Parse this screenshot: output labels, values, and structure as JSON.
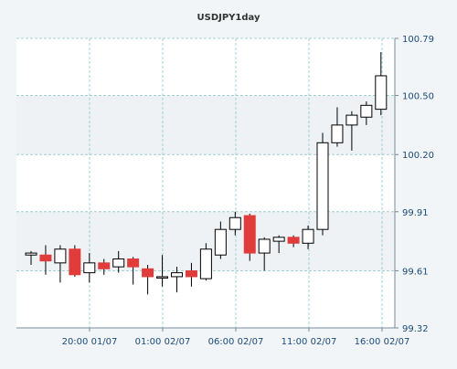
{
  "chart_data": {
    "type": "candlestick",
    "title": "USDJPY1day",
    "xlabel": "",
    "ylabel": "",
    "ylim": [
      99.32,
      100.79
    ],
    "y_ticks": [
      "100.79",
      "100.50",
      "100.20",
      "99.91",
      "99.61",
      "99.32"
    ],
    "x_ticks": [
      "20:00 01/07",
      "01:00 02/07",
      "06:00 02/07",
      "11:00 02/07",
      "16:00 02/07"
    ],
    "grid": true,
    "colors": {
      "up": "#ffffff",
      "down": "#e03c3c",
      "wick": "#000000",
      "grid": "#9fd1d1",
      "band": "#eef2f5",
      "plot": "#ffffff"
    },
    "series": [
      {
        "candles": [
          {
            "open": 99.69,
            "high": 99.71,
            "low": 99.64,
            "close": 99.7
          },
          {
            "open": 99.69,
            "high": 99.74,
            "low": 99.59,
            "close": 99.66
          },
          {
            "open": 99.65,
            "high": 99.74,
            "low": 99.55,
            "close": 99.72
          },
          {
            "open": 99.72,
            "high": 99.74,
            "low": 99.58,
            "close": 99.59
          },
          {
            "open": 99.6,
            "high": 99.7,
            "low": 99.55,
            "close": 99.65
          },
          {
            "open": 99.65,
            "high": 99.67,
            "low": 99.59,
            "close": 99.62
          },
          {
            "open": 99.63,
            "high": 99.71,
            "low": 99.6,
            "close": 99.67
          },
          {
            "open": 99.67,
            "high": 99.68,
            "low": 99.54,
            "close": 99.63
          },
          {
            "open": 99.62,
            "high": 99.64,
            "low": 99.49,
            "close": 99.58
          },
          {
            "open": 99.58,
            "high": 99.69,
            "low": 99.53,
            "close": 99.58
          },
          {
            "open": 99.58,
            "high": 99.63,
            "low": 99.5,
            "close": 99.6
          },
          {
            "open": 99.61,
            "high": 99.65,
            "low": 99.53,
            "close": 99.58
          },
          {
            "open": 99.57,
            "high": 99.75,
            "low": 99.56,
            "close": 99.72
          },
          {
            "open": 99.69,
            "high": 99.86,
            "low": 99.67,
            "close": 99.82
          },
          {
            "open": 99.82,
            "high": 99.91,
            "low": 99.79,
            "close": 99.88
          },
          {
            "open": 99.89,
            "high": 99.9,
            "low": 99.66,
            "close": 99.7
          },
          {
            "open": 99.7,
            "high": 99.78,
            "low": 99.61,
            "close": 99.77
          },
          {
            "open": 99.76,
            "high": 99.79,
            "low": 99.7,
            "close": 99.78
          },
          {
            "open": 99.78,
            "high": 99.79,
            "low": 99.73,
            "close": 99.75
          },
          {
            "open": 99.75,
            "high": 99.84,
            "low": 99.72,
            "close": 99.82
          },
          {
            "open": 99.82,
            "high": 100.31,
            "low": 99.79,
            "close": 100.26
          },
          {
            "open": 100.26,
            "high": 100.44,
            "low": 100.24,
            "close": 100.35
          },
          {
            "open": 100.35,
            "high": 100.42,
            "low": 100.22,
            "close": 100.4
          },
          {
            "open": 100.39,
            "high": 100.47,
            "low": 100.35,
            "close": 100.45
          },
          {
            "open": 100.43,
            "high": 100.72,
            "low": 100.4,
            "close": 100.6
          }
        ]
      }
    ]
  }
}
